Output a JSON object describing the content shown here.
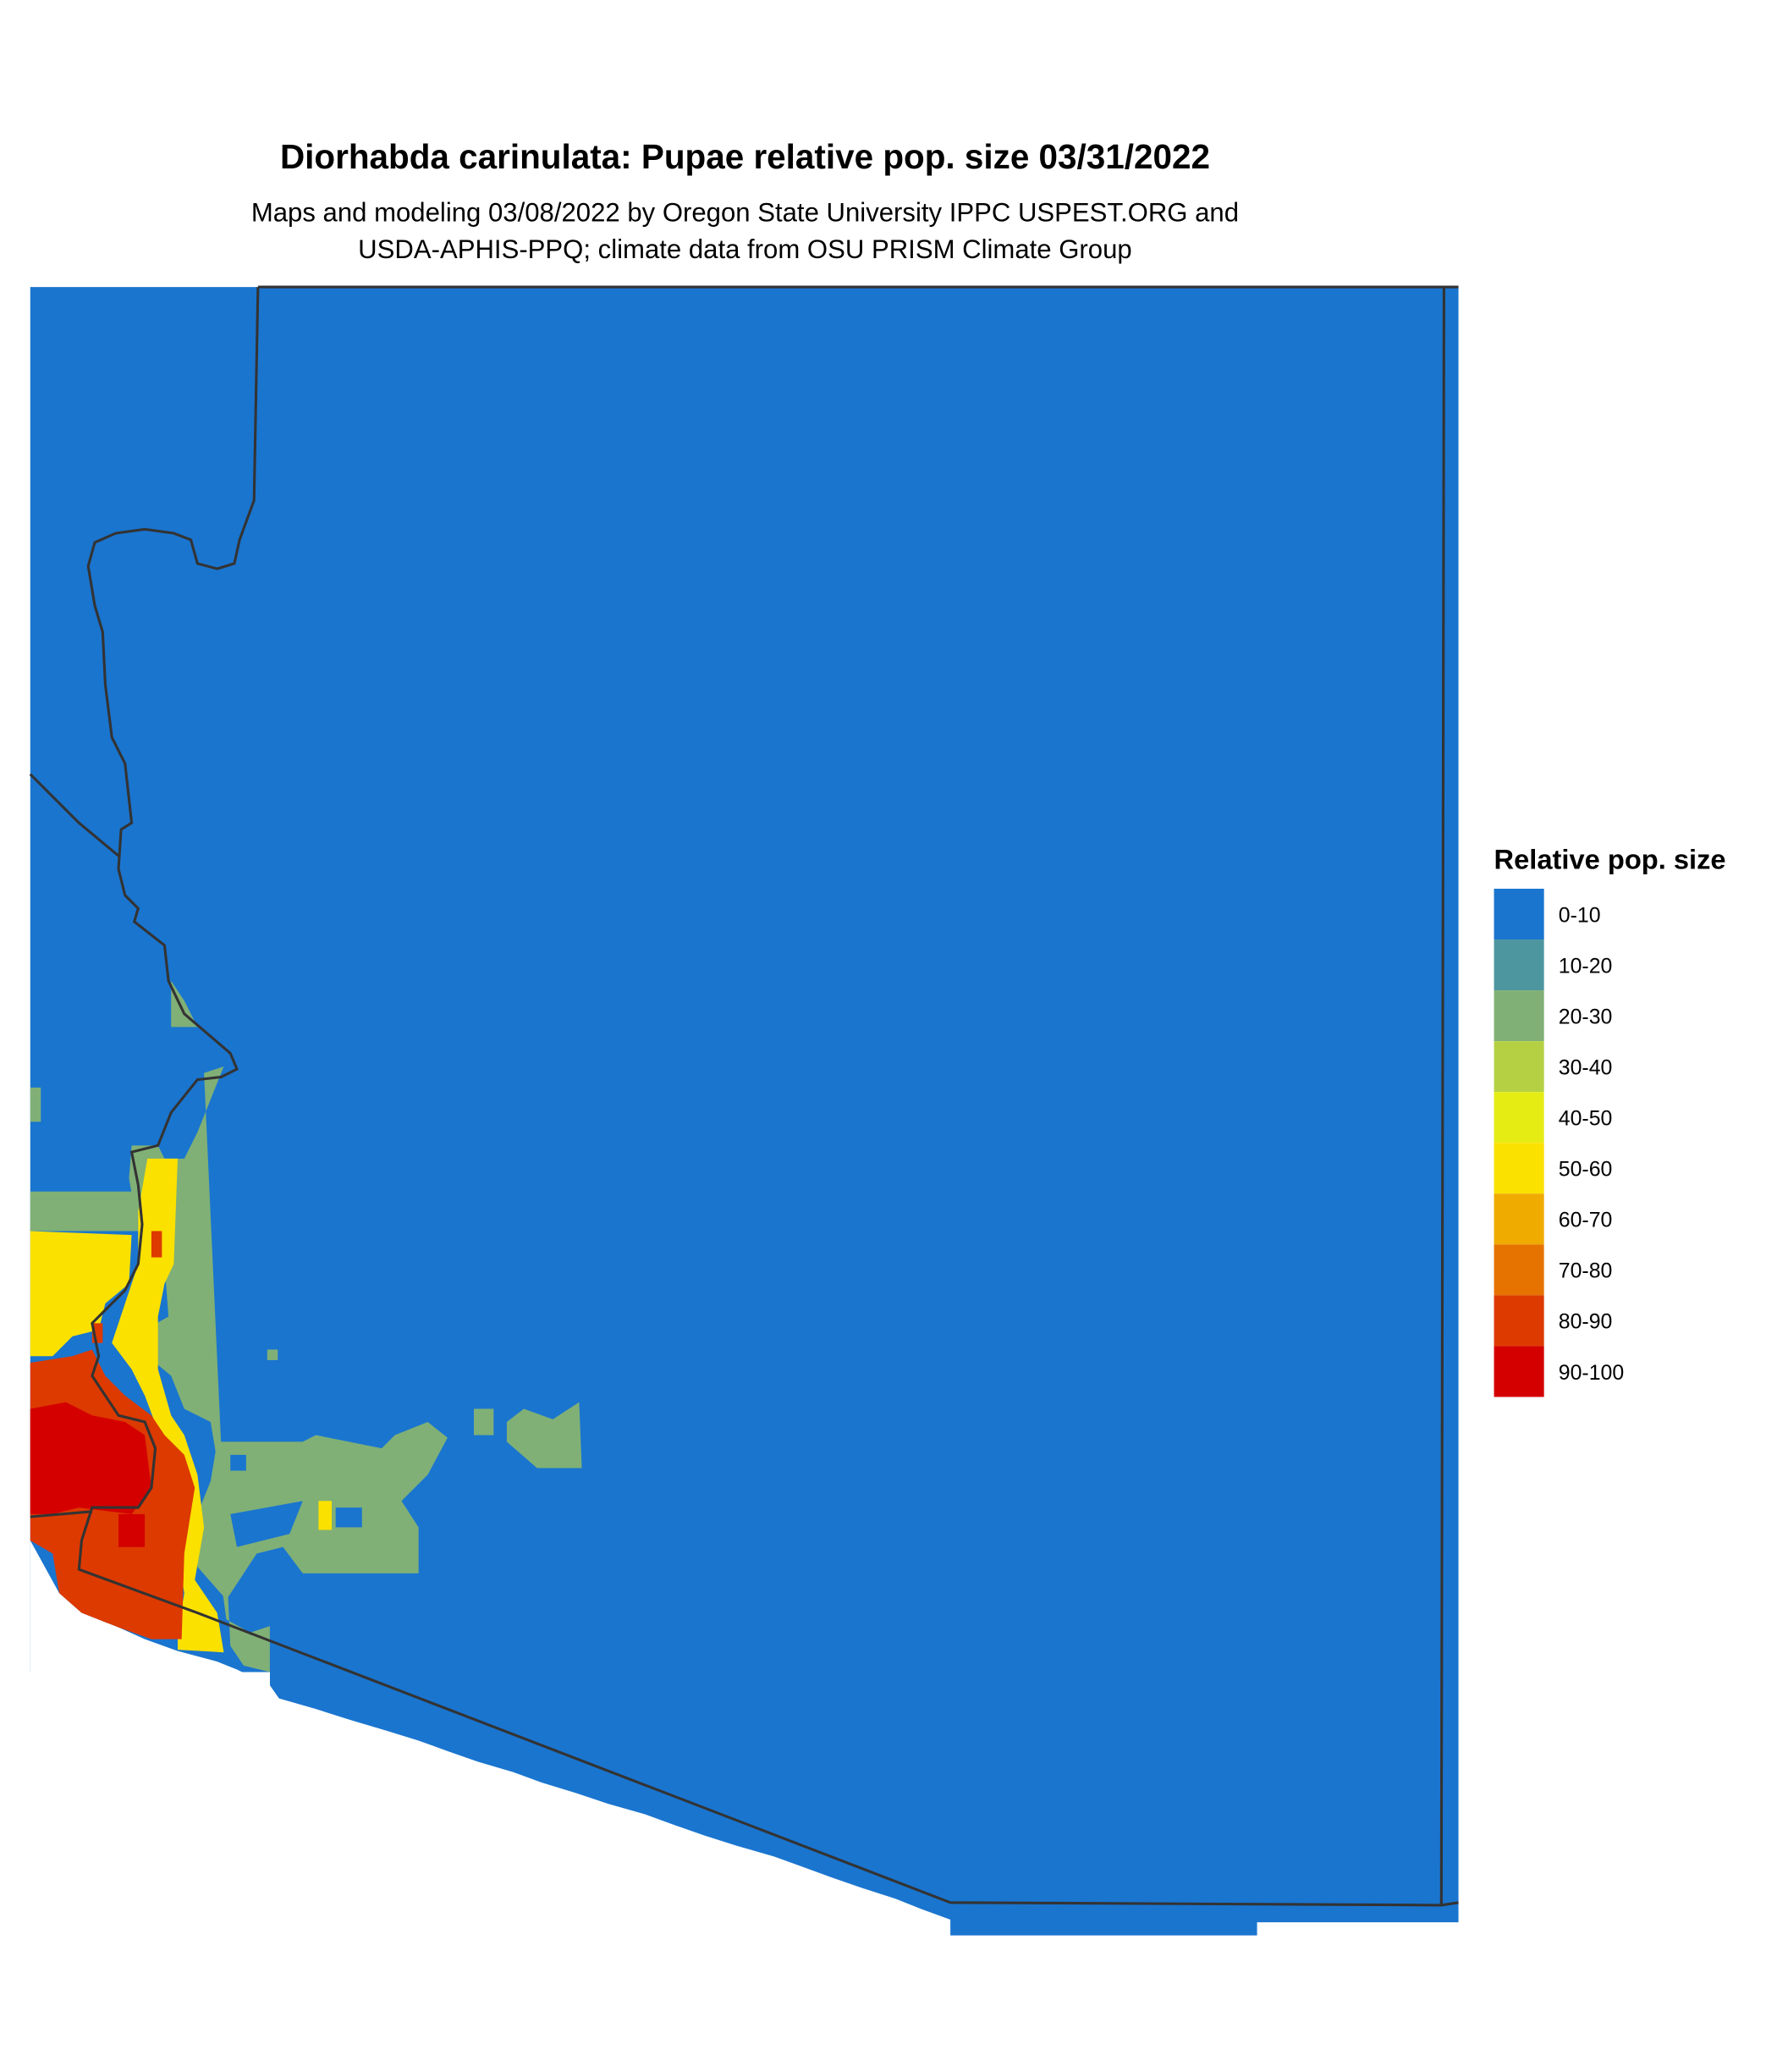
{
  "title": "Diorhabda carinulata: Pupae relative pop. size 03/31/2022",
  "subtitle_lines": [
    "Maps and modeling 03/08/2022 by Oregon State University IPPC USPEST.ORG and",
    "USDA-APHIS-PPQ; climate data from OSU PRISM Climate Group"
  ],
  "legend": {
    "title": "Relative pop. size",
    "items": [
      {
        "label": "0-10",
        "color": "#1a75cf"
      },
      {
        "label": "10-20",
        "color": "#4d96a0"
      },
      {
        "label": "20-30",
        "color": "#80b076"
      },
      {
        "label": "30-40",
        "color": "#b5d143"
      },
      {
        "label": "40-50",
        "color": "#e5ec14"
      },
      {
        "label": "50-60",
        "color": "#fbe100"
      },
      {
        "label": "60-70",
        "color": "#f0ab00"
      },
      {
        "label": "70-80",
        "color": "#e67300"
      },
      {
        "label": "80-90",
        "color": "#dd3a00"
      },
      {
        "label": "90-100",
        "color": "#d40000"
      }
    ]
  }
}
